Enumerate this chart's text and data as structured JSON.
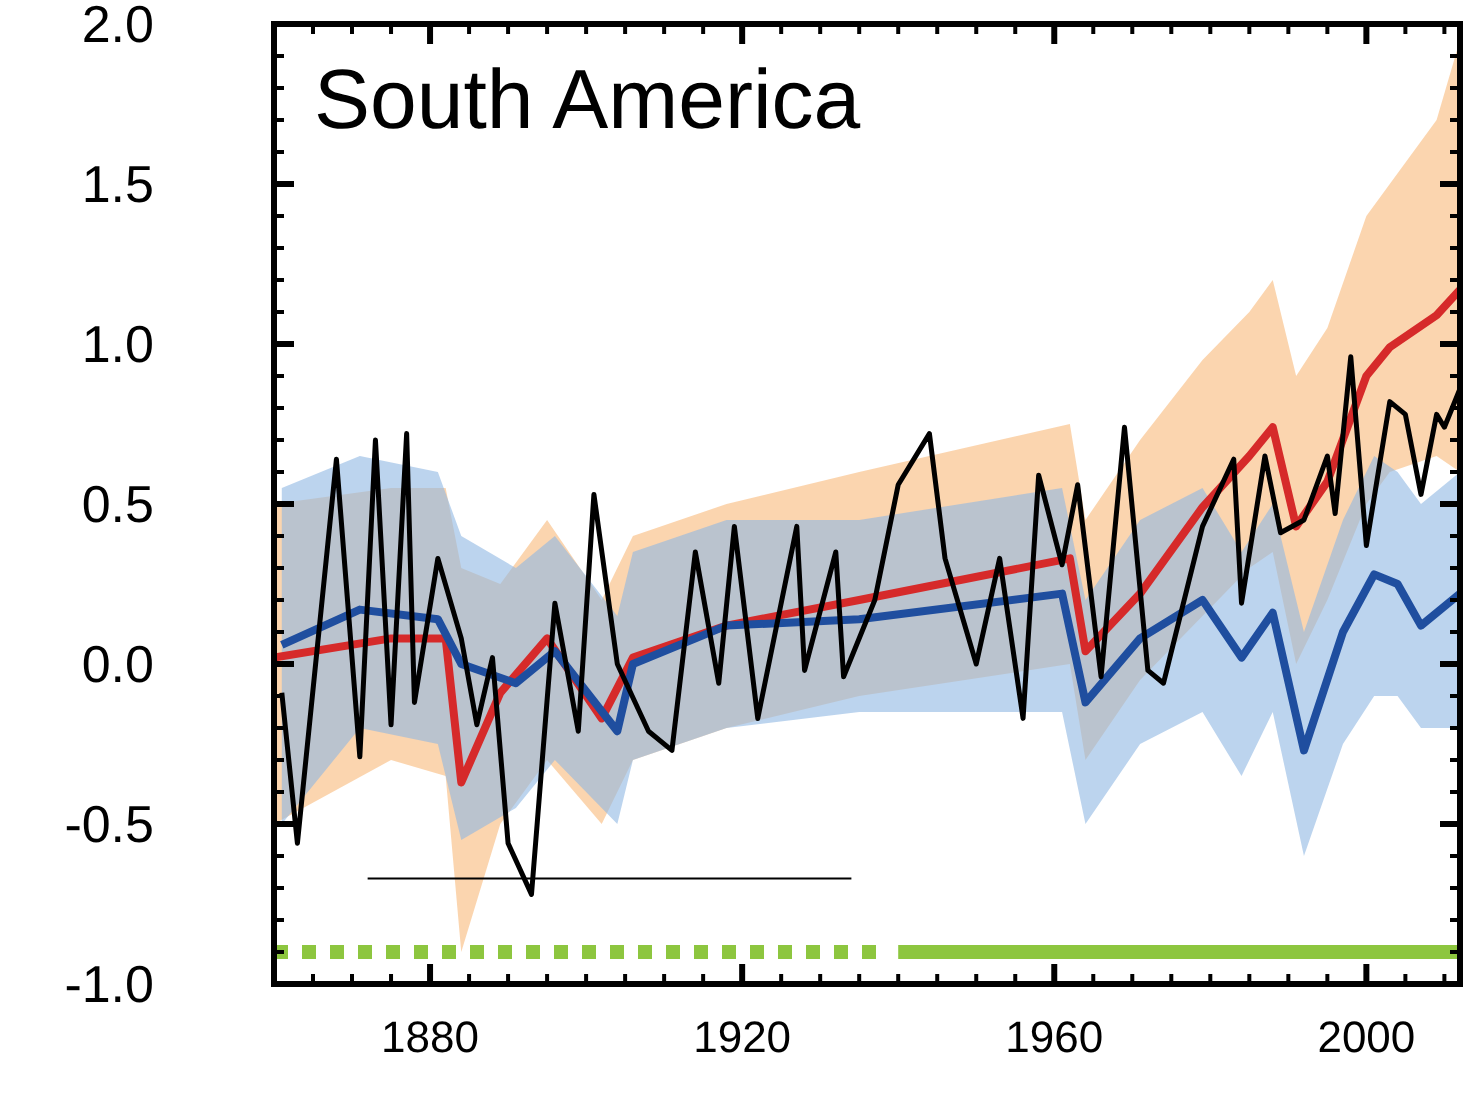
{
  "chart_data": {
    "type": "line",
    "title": "South America",
    "xlim": [
      1860,
      2012
    ],
    "xticks": [
      1880,
      1920,
      1960,
      2000
    ],
    "ylim": [
      -1.0,
      2.0
    ],
    "yticks": [
      {
        "value": -1,
        "label": "-1.0"
      },
      {
        "value": -0.5,
        "label": "-0.5"
      },
      {
        "value": 0,
        "label": "0.0"
      },
      {
        "value": 0.5,
        "label": "0.5"
      },
      {
        "value": 1,
        "label": "1.0"
      },
      {
        "value": 1.5,
        "label": "1.5"
      },
      {
        "value": 2,
        "label": "2.0"
      }
    ],
    "grid": false,
    "series": [
      {
        "color": "#d62a2a",
        "x": [
          1860,
          1875,
          1882,
          1884,
          1889,
          1895,
          1902,
          1906,
          1918,
          1935,
          1962,
          1964,
          1971,
          1979,
          1985,
          1988,
          1991,
          1995,
          2000,
          2003,
          2009,
          2012
        ],
        "values": [
          0.02,
          0.08,
          0.08,
          -0.37,
          -0.09,
          0.08,
          -0.17,
          0.02,
          0.12,
          0.2,
          0.33,
          0.04,
          0.22,
          0.49,
          0.65,
          0.74,
          0.43,
          0.57,
          0.9,
          0.99,
          1.09,
          1.17
        ],
        "lower": [
          -0.5,
          -0.3,
          -0.35,
          -0.9,
          -0.5,
          -0.3,
          -0.5,
          -0.3,
          -0.2,
          -0.1,
          0.0,
          -0.3,
          -0.05,
          0.15,
          0.3,
          0.35,
          0.0,
          0.2,
          0.5,
          0.6,
          0.65,
          0.6
        ],
        "upper": [
          0.5,
          0.55,
          0.55,
          0.3,
          0.25,
          0.45,
          0.2,
          0.4,
          0.5,
          0.6,
          0.75,
          0.45,
          0.7,
          0.95,
          1.1,
          1.2,
          0.9,
          1.05,
          1.4,
          1.5,
          1.7,
          1.95
        ]
      },
      {
        "color": "#1f4e9f",
        "x": [
          1861,
          1871,
          1881,
          1884,
          1891,
          1896,
          1904,
          1906,
          1918,
          1935,
          1961,
          1964,
          1971,
          1979,
          1984,
          1988,
          1992,
          1997,
          2001,
          2004,
          2007,
          2012
        ],
        "values": [
          0.06,
          0.17,
          0.14,
          0,
          -0.06,
          0.04,
          -0.21,
          0,
          0.12,
          0.14,
          0.22,
          -0.12,
          0.08,
          0.2,
          0.02,
          0.16,
          -0.27,
          0.1,
          0.28,
          0.25,
          0.12,
          0.22
        ],
        "lower": [
          -0.5,
          -0.2,
          -0.25,
          -0.55,
          -0.45,
          -0.3,
          -0.5,
          -0.3,
          -0.2,
          -0.15,
          -0.15,
          -0.5,
          -0.25,
          -0.15,
          -0.35,
          -0.15,
          -0.6,
          -0.25,
          -0.1,
          -0.1,
          -0.2,
          -0.2
        ],
        "upper": [
          0.55,
          0.65,
          0.6,
          0.4,
          0.3,
          0.4,
          0.15,
          0.35,
          0.45,
          0.45,
          0.55,
          0.2,
          0.45,
          0.55,
          0.35,
          0.5,
          0.1,
          0.45,
          0.65,
          0.6,
          0.5,
          0.6
        ]
      },
      {
        "color": "#000000",
        "x": [
          1861,
          1863,
          1868,
          1871,
          1873,
          1875,
          1877,
          1878,
          1881,
          1884,
          1886,
          1888,
          1890,
          1893,
          1896,
          1899,
          1901,
          1904,
          1908,
          1911,
          1914,
          1917,
          1919,
          1922,
          1927,
          1928,
          1932,
          1933,
          1937,
          1940,
          1944,
          1946,
          1950,
          1953,
          1956,
          1958,
          1961,
          1963,
          1966,
          1969,
          1972,
          1974,
          1979,
          1983,
          1984,
          1987,
          1989,
          1992,
          1995,
          1996,
          1998,
          2000,
          2003,
          2005,
          2007,
          2009,
          2010,
          2012
        ],
        "values": [
          -0.09,
          -0.56,
          0.64,
          -0.29,
          0.7,
          -0.19,
          0.72,
          -0.12,
          0.33,
          0.08,
          -0.19,
          0.02,
          -0.56,
          -0.72,
          0.19,
          -0.21,
          0.53,
          0,
          -0.21,
          -0.27,
          0.35,
          -0.06,
          0.43,
          -0.17,
          0.43,
          -0.02,
          0.35,
          -0.04,
          0.2,
          0.56,
          0.72,
          0.33,
          0,
          0.33,
          -0.17,
          0.59,
          0.31,
          0.56,
          -0.04,
          0.74,
          -0.02,
          -0.06,
          0.43,
          0.64,
          0.19,
          0.65,
          0.41,
          0.45,
          0.65,
          0.47,
          0.96,
          0.37,
          0.82,
          0.78,
          0.53,
          0.78,
          0.74,
          0.86
        ]
      },
      {
        "color": "#000000",
        "x": [
          1872,
          1934
        ],
        "values": [
          -0.67,
          -0.67
        ]
      },
      {
        "color": "#8dc63f",
        "x": [
          1860,
          1938
        ],
        "values": [
          -0.9,
          -0.9
        ],
        "line_style": "dashed"
      },
      {
        "color": "#8dc63f",
        "x": [
          1940,
          2012
        ],
        "values": [
          -0.9,
          -0.9
        ],
        "line_style": "solid"
      }
    ]
  }
}
